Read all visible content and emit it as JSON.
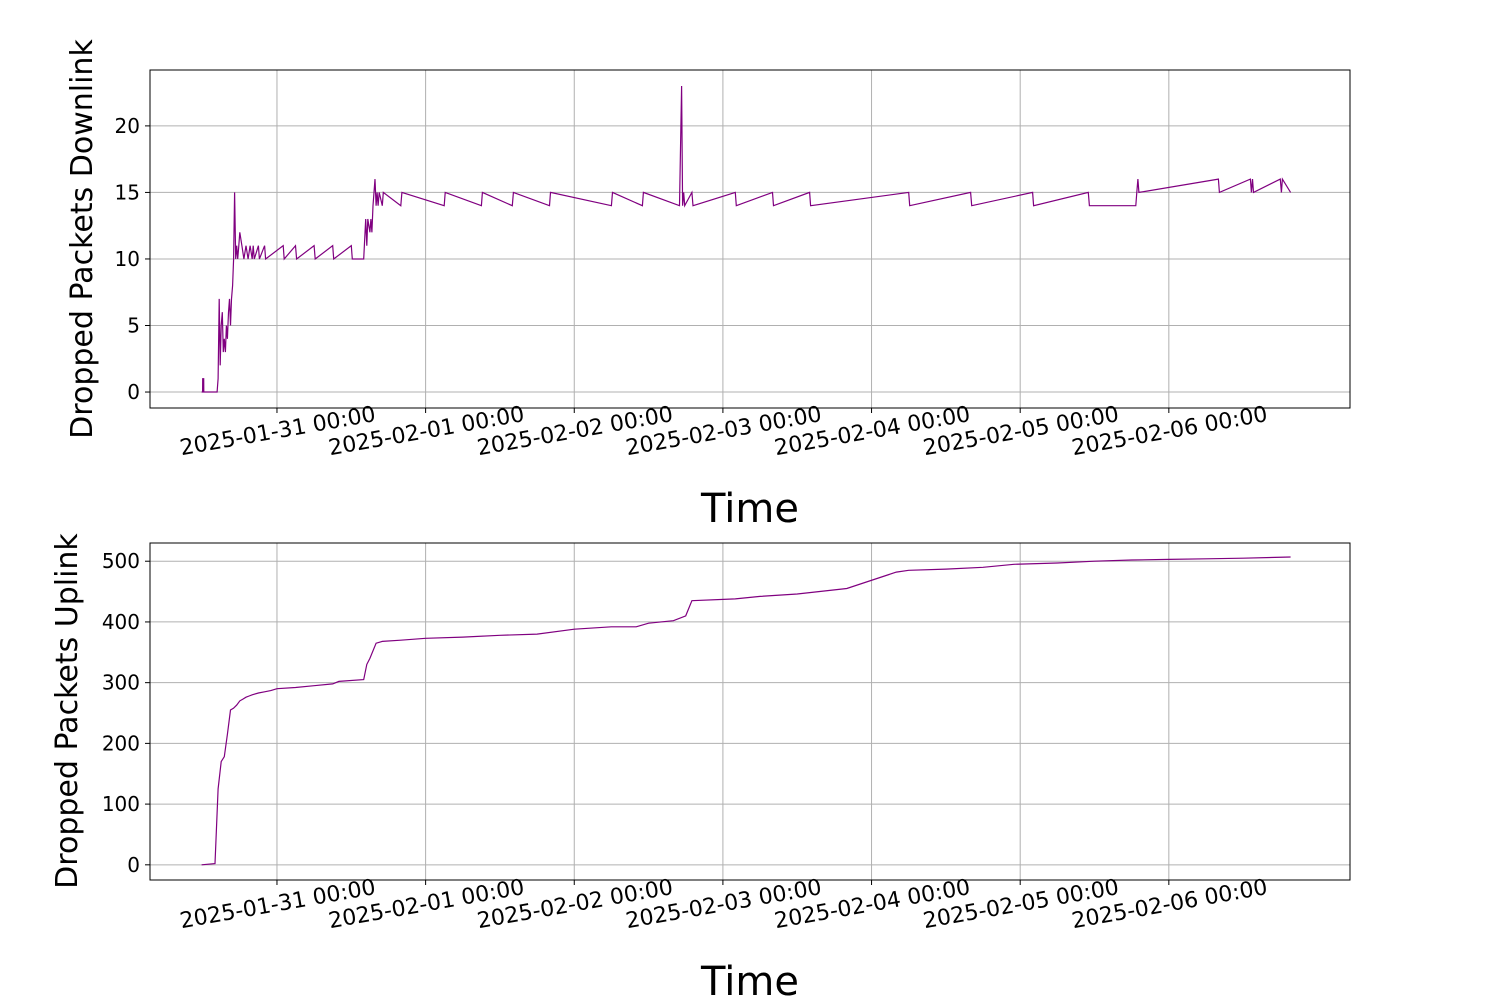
{
  "chart_data": [
    {
      "type": "line",
      "xlabel": "Time",
      "ylabel": "Dropped Packets Downlink",
      "ylim": [
        -1.2,
        24.2
      ],
      "xlim": [
        "2025-01-30 03:30",
        "2025-02-07 05:15"
      ],
      "yticks": [
        0,
        5,
        10,
        15,
        20
      ],
      "xticks": [
        "2025-01-31 00:00",
        "2025-02-01 00:00",
        "2025-02-02 00:00",
        "2025-02-03 00:00",
        "2025-02-04 00:00",
        "2025-02-05 00:00",
        "2025-02-06 00:00"
      ],
      "grid": true,
      "color": "#800080",
      "series": [
        {
          "x": [
            "2025-01-30 11:50",
            "2025-01-30 12:00",
            "2025-01-30 12:01",
            "2025-01-30 12:10",
            "2025-01-30 12:11",
            "2025-01-30 14:20",
            "2025-01-30 14:30",
            "2025-01-30 14:40",
            "2025-01-30 14:50",
            "2025-01-30 15:00",
            "2025-01-30 15:10",
            "2025-01-30 15:20",
            "2025-01-30 15:30",
            "2025-01-30 15:40",
            "2025-01-30 15:50",
            "2025-01-30 16:00",
            "2025-01-30 16:10",
            "2025-01-30 16:20",
            "2025-01-30 16:30",
            "2025-01-30 16:40",
            "2025-01-30 16:50",
            "2025-01-30 17:00",
            "2025-01-30 17:10",
            "2025-01-30 17:20",
            "2025-01-30 17:30",
            "2025-01-30 17:40",
            "2025-01-30 17:50",
            "2025-01-30 18:00",
            "2025-01-30 18:20",
            "2025-01-30 18:40",
            "2025-01-30 19:00",
            "2025-01-30 19:20",
            "2025-01-30 19:40",
            "2025-01-30 20:00",
            "2025-01-30 20:10",
            "2025-01-30 20:20",
            "2025-01-30 21:00",
            "2025-01-30 21:10",
            "2025-01-30 22:00",
            "2025-01-30 22:10",
            "2025-01-31 01:00",
            "2025-01-31 01:10",
            "2025-01-31 03:00",
            "2025-01-31 03:10",
            "2025-01-31 06:00",
            "2025-01-31 06:10",
            "2025-01-31 09:00",
            "2025-01-31 09:10",
            "2025-01-31 12:00",
            "2025-01-31 12:10",
            "2025-01-31 14:00",
            "2025-01-31 14:20",
            "2025-01-31 14:30",
            "2025-01-31 14:40",
            "2025-01-31 15:00",
            "2025-01-31 15:10",
            "2025-01-31 15:20",
            "2025-01-31 15:30",
            "2025-01-31 15:50",
            "2025-01-31 16:00",
            "2025-01-31 16:10",
            "2025-01-31 16:20",
            "2025-01-31 16:30",
            "2025-01-31 17:00",
            "2025-01-31 17:10",
            "2025-01-31 20:00",
            "2025-01-31 20:10",
            "2025-02-01 03:00",
            "2025-02-01 03:10",
            "2025-02-01 09:00",
            "2025-02-01 09:10",
            "2025-02-01 14:00",
            "2025-02-01 14:10",
            "2025-02-01 20:00",
            "2025-02-01 20:10",
            "2025-02-02 06:00",
            "2025-02-02 06:10",
            "2025-02-02 11:00",
            "2025-02-02 11:10",
            "2025-02-02 17:00",
            "2025-02-02 17:20",
            "2025-02-02 17:30",
            "2025-02-02 17:40",
            "2025-02-02 17:50",
            "2025-02-02 19:00",
            "2025-02-02 19:10",
            "2025-02-03 02:00",
            "2025-02-03 02:10",
            "2025-02-03 08:00",
            "2025-02-03 08:10",
            "2025-02-03 14:00",
            "2025-02-03 14:10",
            "2025-02-04 06:00",
            "2025-02-04 06:10",
            "2025-02-04 16:00",
            "2025-02-04 16:10",
            "2025-02-05 02:00",
            "2025-02-05 02:10",
            "2025-02-05 11:00",
            "2025-02-05 11:10",
            "2025-02-05 18:40",
            "2025-02-05 18:50",
            "2025-02-05 19:00",
            "2025-02-05 19:10",
            "2025-02-06 08:00",
            "2025-02-06 08:10",
            "2025-02-06 13:10",
            "2025-02-06 13:20",
            "2025-02-06 13:30",
            "2025-02-06 13:40",
            "2025-02-06 18:00",
            "2025-02-06 18:10",
            "2025-02-06 18:20",
            "2025-02-06 19:40"
          ],
          "y": [
            0,
            0,
            1,
            1,
            0,
            0,
            1,
            7,
            2,
            5,
            6,
            3,
            4,
            3,
            5,
            4,
            6,
            7,
            5,
            7,
            8,
            10,
            15,
            10,
            11,
            10,
            11,
            12,
            11,
            10,
            11,
            10,
            11,
            10,
            11,
            10,
            11,
            10,
            11,
            10,
            11,
            10,
            11,
            10,
            11,
            10,
            11,
            10,
            11,
            10,
            10,
            13,
            11,
            13,
            12,
            13,
            12,
            14,
            16,
            14,
            15,
            14,
            15,
            14,
            15,
            14,
            15,
            14,
            15,
            14,
            15,
            14,
            15,
            14,
            15,
            14,
            15,
            14,
            15,
            14,
            23,
            14,
            15,
            14,
            15,
            14,
            15,
            14,
            15,
            14,
            15,
            14,
            15,
            14,
            15,
            14,
            15,
            14,
            15,
            14,
            14,
            15,
            16,
            15,
            16,
            15,
            16,
            15,
            16,
            15,
            16,
            15,
            16,
            15
          ]
        }
      ]
    },
    {
      "type": "line",
      "xlabel": "Time",
      "ylabel": "Dropped Packets Uplink",
      "ylim": [
        -25,
        530
      ],
      "xlim": [
        "2025-01-30 03:30",
        "2025-02-07 05:15"
      ],
      "yticks": [
        0,
        100,
        200,
        300,
        400,
        500
      ],
      "xticks": [
        "2025-01-31 00:00",
        "2025-02-01 00:00",
        "2025-02-02 00:00",
        "2025-02-03 00:00",
        "2025-02-04 00:00",
        "2025-02-05 00:00",
        "2025-02-06 00:00"
      ],
      "grid": true,
      "color": "#800080",
      "series": [
        {
          "x": [
            "2025-01-30 11:50",
            "2025-01-30 14:00",
            "2025-01-30 14:30",
            "2025-01-30 15:00",
            "2025-01-30 15:30",
            "2025-01-30 16:00",
            "2025-01-30 16:30",
            "2025-01-30 17:00",
            "2025-01-30 17:30",
            "2025-01-30 18:00",
            "2025-01-30 18:30",
            "2025-01-30 19:00",
            "2025-01-30 19:30",
            "2025-01-30 20:00",
            "2025-01-30 21:00",
            "2025-01-30 22:00",
            "2025-01-30 23:00",
            "2025-01-31 00:00",
            "2025-01-31 03:00",
            "2025-01-31 06:00",
            "2025-01-31 09:00",
            "2025-01-31 10:00",
            "2025-01-31 14:00",
            "2025-01-31 14:30",
            "2025-01-31 15:00",
            "2025-01-31 16:00",
            "2025-01-31 17:00",
            "2025-01-31 20:00",
            "2025-02-01 00:00",
            "2025-02-01 06:00",
            "2025-02-01 12:00",
            "2025-02-01 18:00",
            "2025-02-02 00:00",
            "2025-02-02 06:00",
            "2025-02-02 10:00",
            "2025-02-02 12:00",
            "2025-02-02 16:00",
            "2025-02-02 18:00",
            "2025-02-02 19:00",
            "2025-02-03 02:00",
            "2025-02-03 06:00",
            "2025-02-03 12:00",
            "2025-02-03 20:00",
            "2025-02-04 04:00",
            "2025-02-04 06:00",
            "2025-02-04 12:00",
            "2025-02-04 18:00",
            "2025-02-04 23:00",
            "2025-02-05 06:00",
            "2025-02-05 12:00",
            "2025-02-05 18:00",
            "2025-02-06 00:00",
            "2025-02-06 06:00",
            "2025-02-06 12:00",
            "2025-02-06 19:40"
          ],
          "y": [
            0,
            2,
            125,
            170,
            178,
            215,
            255,
            258,
            263,
            270,
            273,
            276,
            278,
            280,
            283,
            285,
            287,
            290,
            292,
            295,
            298,
            302,
            305,
            330,
            340,
            365,
            368,
            370,
            373,
            375,
            378,
            380,
            388,
            392,
            392,
            398,
            402,
            410,
            435,
            438,
            442,
            446,
            455,
            482,
            485,
            487,
            490,
            495,
            497,
            500,
            502,
            503,
            504,
            505,
            507
          ]
        }
      ]
    }
  ]
}
